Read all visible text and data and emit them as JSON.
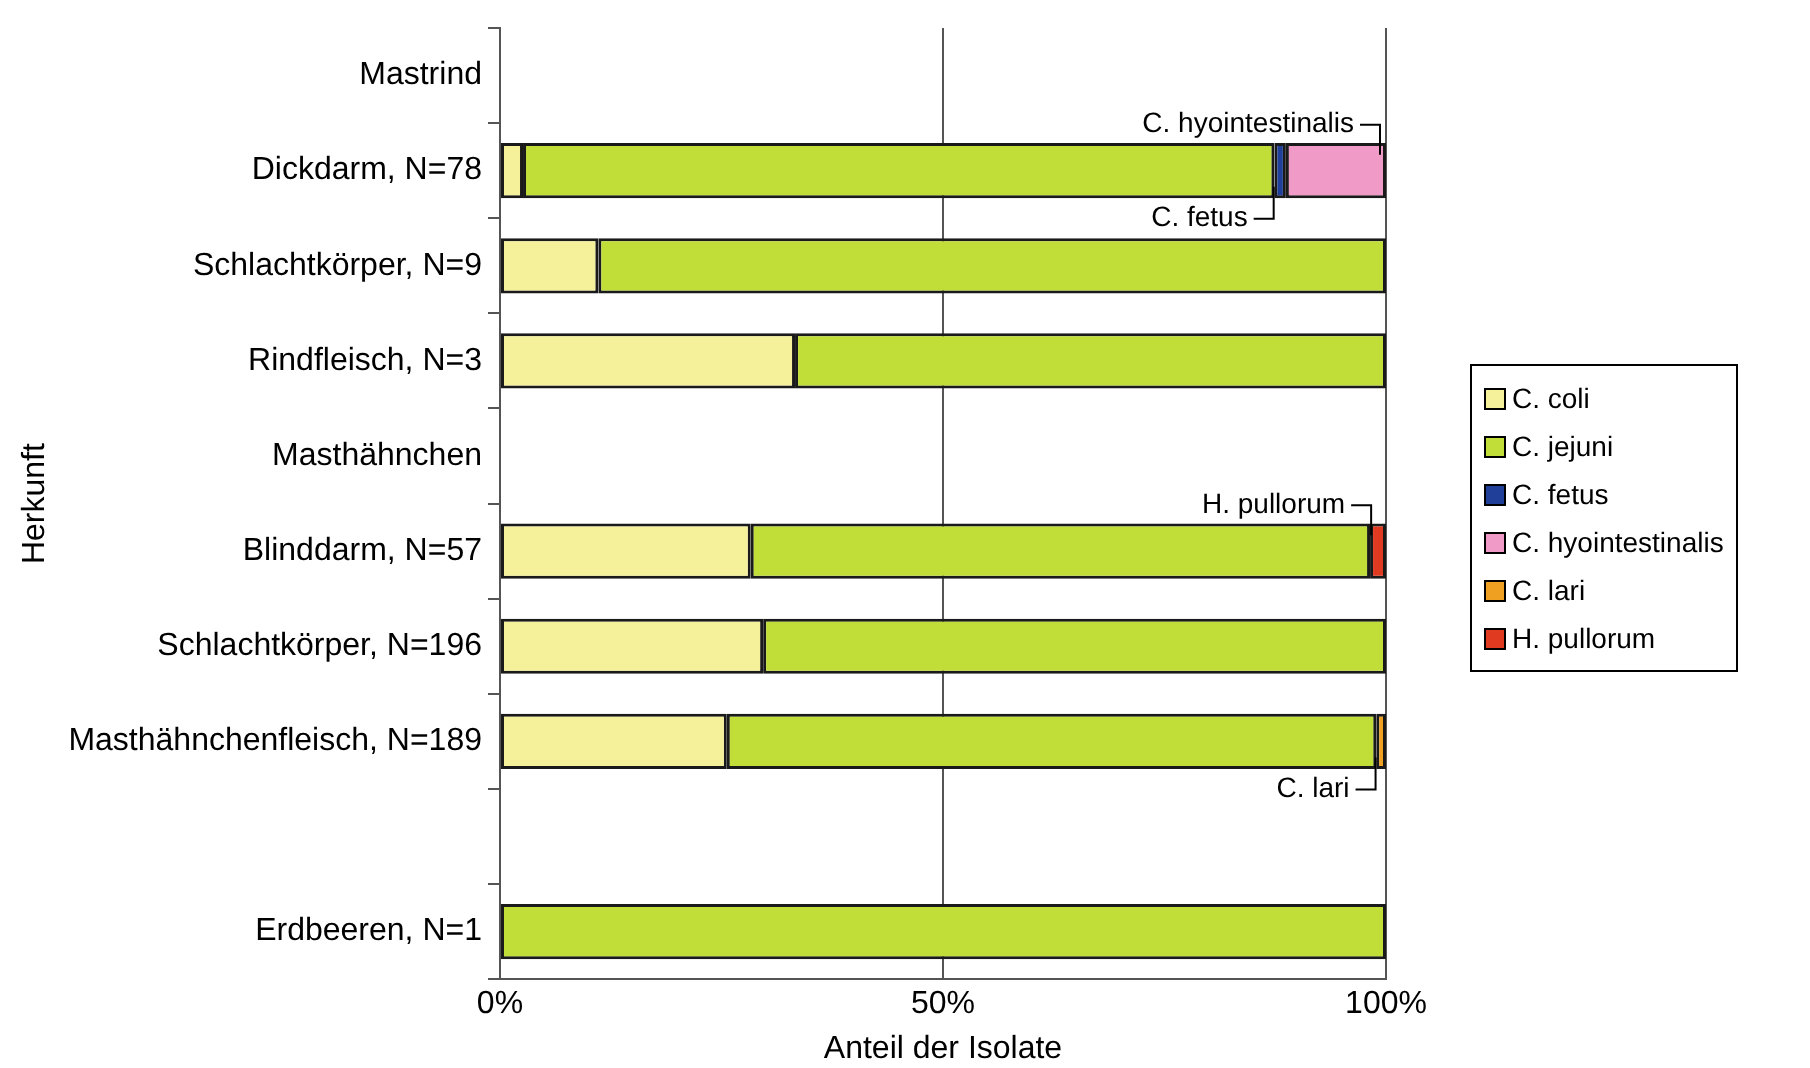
{
  "chart_data": {
    "type": "bar",
    "orientation": "horizontal",
    "stacked": true,
    "xlabel": "Anteil der Isolate",
    "ylabel": "Herkunft",
    "categories": [
      "Mastrind",
      "Dickdarm, N=78",
      "Schlachtkörper, N=9",
      "Rindfleisch, N=3",
      "Masthähnchen",
      "Blinddarm, N=57",
      "Schlachtkörper, N=196",
      "Masthähnchenfleisch, N=189",
      null,
      "Erdbeeren, N=1"
    ],
    "series": [
      {
        "name": "C. coli",
        "color": "#f5f09a",
        "values": [
          null,
          2.6,
          11.1,
          33.3,
          null,
          28.3,
          29.7,
          25.6,
          null,
          0
        ]
      },
      {
        "name": "C. jejuni",
        "color": "#c0dd38",
        "values": [
          null,
          84.8,
          88.9,
          66.7,
          null,
          69.9,
          70.3,
          73.3,
          null,
          100
        ]
      },
      {
        "name": "C. fetus",
        "color": "#1f3f99",
        "values": [
          null,
          1.3,
          0,
          0,
          null,
          0,
          0,
          0,
          null,
          0
        ]
      },
      {
        "name": "C. hyointestinalis",
        "color": "#f09ac8",
        "values": [
          null,
          11.3,
          0,
          0,
          null,
          0,
          0,
          0,
          null,
          0
        ]
      },
      {
        "name": "C. lari",
        "color": "#f0a020",
        "values": [
          null,
          0,
          0,
          0,
          null,
          0,
          0,
          1.1,
          null,
          0
        ]
      },
      {
        "name": "H. pullorum",
        "color": "#e03a20",
        "values": [
          null,
          0,
          0,
          0,
          null,
          1.8,
          0,
          0,
          null,
          0
        ]
      }
    ],
    "xlim": [
      0,
      100
    ],
    "xticks": [
      {
        "value": 0,
        "label": "0%"
      },
      {
        "value": 50,
        "label": "50%"
      },
      {
        "value": 100,
        "label": "100%"
      }
    ],
    "grid": "x",
    "legend": "right",
    "annotations": [
      {
        "text": "C. hyointestinalis",
        "x": 100,
        "y": "Dickdarm, N=78"
      },
      {
        "text": "C. fetus",
        "x": 88,
        "y": "Dickdarm, N=78"
      },
      {
        "text": "H. pullorum",
        "x": 99,
        "y": "Blinddarm, N=57"
      },
      {
        "text": "C. lari",
        "x": 99.5,
        "y": "Masthähnchenfleisch, N=189"
      }
    ]
  }
}
